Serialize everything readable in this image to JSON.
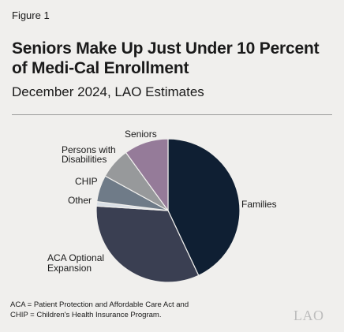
{
  "figure": {
    "label": "Figure 1",
    "title": "Seniors Make Up Just Under 10 Percent of Medi-Cal Enrollment",
    "subtitle": "December 2024, LAO Estimates"
  },
  "chart_data": {
    "type": "pie",
    "title": "Seniors Make Up Just Under 10 Percent of Medi-Cal Enrollment",
    "subtitle": "December 2024, LAO Estimates",
    "slices": [
      {
        "label": "Families",
        "value": 43,
        "color": "#0f1f33"
      },
      {
        "label": "ACA Optional Expansion",
        "value": 33,
        "color": "#3a3f52"
      },
      {
        "label": "Other",
        "value": 1,
        "color": "#d9dfe6"
      },
      {
        "label": "CHIP",
        "value": 6,
        "color": "#6f7b88"
      },
      {
        "label": "Persons with Disabilities",
        "value": 7,
        "color": "#97999b"
      },
      {
        "label": "Seniors",
        "value": 10,
        "color": "#957b99"
      }
    ]
  },
  "labels": {
    "families": "Families",
    "aca_line1": "ACA Optional",
    "aca_line2": "Expansion",
    "other": "Other",
    "chip": "CHIP",
    "pwd_line1": "Persons with",
    "pwd_line2": "Disabilities",
    "seniors": "Seniors"
  },
  "footnote": {
    "line1": "ACA = Patient Protection and Affordable Care Act and",
    "line2": "CHIP = Children's Health Insurance Program."
  },
  "logo": {
    "text": "LAO"
  }
}
